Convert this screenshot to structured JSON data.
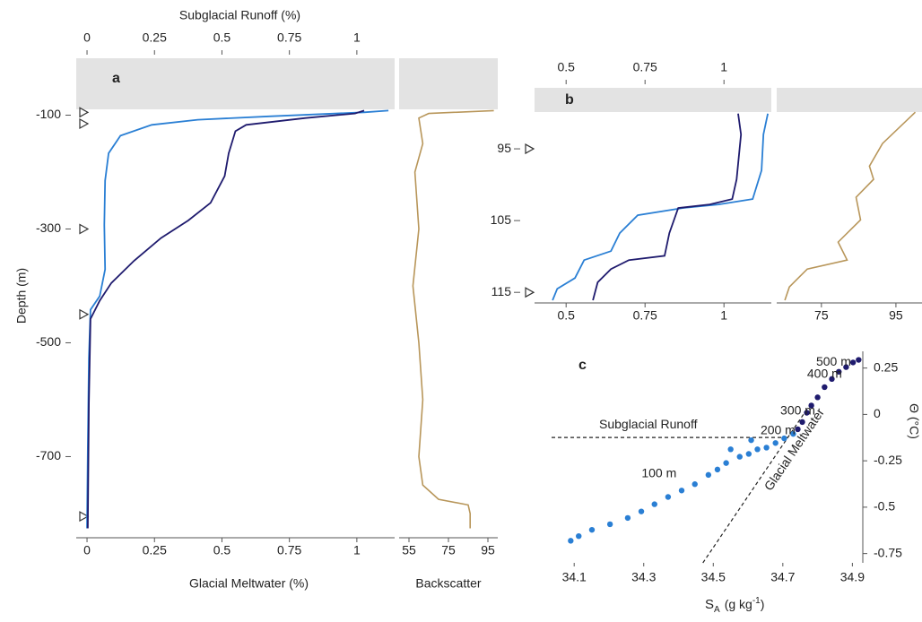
{
  "chart_data": [
    {
      "type": "profile",
      "panel_label": "a",
      "ylabel": "Depth (m)",
      "ylim": [
        -830,
        0
      ],
      "yticks": [
        -100,
        -300,
        -500,
        -700
      ],
      "markers": [
        -95,
        -115,
        -300,
        -450,
        -805
      ],
      "xlabel": "Glacial Meltwater (%)",
      "xlim": [
        -0.04,
        1.14
      ],
      "xticks": [
        0,
        0.25,
        0.5,
        0.75,
        1
      ],
      "x2label": "Subglacial Runoff (%)",
      "x2lim": [
        -0.04,
        1.14
      ],
      "x2ticks": [
        0,
        0.25,
        0.5,
        0.75,
        1
      ],
      "series": [
        {
          "color": "#2a7fd4",
          "axis": "x2",
          "x": [
            1.117,
            1.027,
            0.675,
            0.41,
            0.24,
            0.124,
            0.08,
            0.067,
            0.064,
            0.067,
            0.047,
            0.013,
            0.007,
            0.003,
            0
          ],
          "y": [
            -92,
            -95,
            -102,
            -108,
            -117,
            -136,
            -167,
            -215,
            -293,
            -371,
            -418,
            -442,
            -528,
            -685,
            -826
          ]
        },
        {
          "color": "#1f1b6e",
          "x": [
            1.027,
            0.993,
            0.81,
            0.59,
            0.55,
            0.525,
            0.51,
            0.458,
            0.375,
            0.274,
            0.174,
            0.09,
            0.047,
            0.013,
            0.007,
            0.003
          ],
          "y": [
            -92,
            -97,
            -105,
            -117,
            -128,
            -167,
            -207,
            -254,
            -285,
            -316,
            -356,
            -395,
            -426,
            -458,
            -607,
            -826
          ]
        }
      ],
      "backscatter": {
        "xlabel": "Backscatter",
        "color": "#b8965a",
        "xlim": [
          50,
          100
        ],
        "xticks": [
          55,
          75,
          95
        ],
        "x": [
          98,
          65,
          60,
          62,
          58,
          60,
          57,
          60,
          62,
          60,
          62,
          70,
          85,
          86,
          86
        ],
        "y": [
          -92,
          -97,
          -105,
          -150,
          -200,
          -300,
          -400,
          -500,
          -600,
          -700,
          -750,
          -775,
          -785,
          -800,
          -826
        ]
      }
    },
    {
      "type": "profile",
      "panel_label": "b",
      "ylim": [
        116.1,
        86.5
      ],
      "yticks": [
        95,
        105,
        115
      ],
      "markers": [
        95,
        115
      ],
      "xlim": [
        0.4,
        1.15
      ],
      "xticks": [
        0.5,
        0.75,
        1
      ],
      "x2lim": [
        0.4,
        1.15
      ],
      "x2ticks": [
        0.5,
        0.75,
        1
      ],
      "series": [
        {
          "color": "#2a7fd4",
          "axis": "x2",
          "x": [
            1.139,
            1.125,
            1.119,
            1.091,
            0.983,
            0.869,
            0.727,
            0.67,
            0.642,
            0.557,
            0.528,
            0.472,
            0.457
          ],
          "y": [
            90.1,
            93,
            98,
            102,
            102.75,
            103.25,
            104.25,
            106.75,
            109.25,
            110.5,
            113,
            114.5,
            116.1
          ]
        },
        {
          "color": "#1f1b6e",
          "x": [
            1.045,
            1.054,
            1.04,
            1.026,
            0.955,
            0.855,
            0.827,
            0.812,
            0.699,
            0.642,
            0.6,
            0.585
          ],
          "y": [
            90.1,
            93,
            99.25,
            102,
            102.75,
            103.25,
            106.75,
            109.9,
            110.5,
            111.75,
            113.6,
            116.1
          ]
        }
      ],
      "backscatter": {
        "color": "#b8965a",
        "xlim": [
          63,
          102
        ],
        "xticks": [
          75,
          95
        ],
        "x": [
          100.2,
          91.4,
          87.9,
          89,
          84.3,
          85.5,
          79.5,
          81.9,
          71.2,
          66.4,
          65.2
        ],
        "y": [
          89.9,
          94.25,
          97.4,
          99.25,
          101.75,
          104.9,
          108,
          110.5,
          111.75,
          114.25,
          116.1
        ]
      }
    },
    {
      "type": "scatter",
      "panel_label": "c",
      "xlabel": [
        "S",
        "A",
        "(g kg",
        "-1",
        ")"
      ],
      "ylabel": "Θ (°C)",
      "xlim": [
        34.035,
        34.93
      ],
      "xticks": [
        34.1,
        34.3,
        34.5,
        34.7,
        34.9
      ],
      "ylim": [
        -0.8,
        0.34
      ],
      "yticks": [
        0.25,
        0,
        -0.25,
        -0.5,
        -0.75
      ],
      "series": [
        {
          "color": "#2a7fd4",
          "x": [
            34.09,
            34.113,
            34.151,
            34.203,
            34.254,
            34.293,
            34.331,
            34.37,
            34.409,
            34.447,
            34.486,
            34.512,
            34.537,
            34.55,
            34.576,
            34.602,
            34.609,
            34.627,
            34.653,
            34.679,
            34.704,
            34.73
          ],
          "y": [
            -0.681,
            -0.656,
            -0.622,
            -0.592,
            -0.558,
            -0.523,
            -0.484,
            -0.445,
            -0.41,
            -0.376,
            -0.326,
            -0.297,
            -0.262,
            -0.188,
            -0.228,
            -0.213,
            -0.139,
            -0.188,
            -0.179,
            -0.154,
            -0.129,
            -0.105
          ]
        },
        {
          "color": "#1f1b6e",
          "x": [
            34.743,
            34.756,
            34.769,
            34.782,
            34.8,
            34.82,
            34.841,
            34.861,
            34.882,
            34.902,
            34.918
          ],
          "y": [
            -0.08,
            -0.041,
            0.009,
            0.048,
            0.092,
            0.147,
            0.191,
            0.23,
            0.255,
            0.28,
            0.294
          ]
        }
      ],
      "reference_lines": [
        {
          "label": "Subglacial Runoff",
          "x": [
            34.035,
            34.72
          ],
          "y": [
            -0.124,
            -0.124
          ]
        },
        {
          "label": "Glacial Meltwater",
          "x": [
            34.47,
            34.77
          ],
          "y": [
            -0.8,
            0.03
          ]
        }
      ],
      "annotations": [
        {
          "text": "100 m",
          "x": 34.344,
          "y": -0.321,
          "color": "#2a7fd4"
        },
        {
          "text": "200 m",
          "x": 34.686,
          "y": -0.09,
          "color": "#2a7fd4"
        },
        {
          "text": "300 m",
          "x": 34.743,
          "y": 0.018,
          "color": "#1f1b6e"
        },
        {
          "text": "400 m",
          "x": 34.82,
          "y": 0.215,
          "color": "#1f1b6e"
        },
        {
          "text": "500 m",
          "x": 34.846,
          "y": 0.28,
          "color": "#1f1b6e"
        }
      ]
    }
  ]
}
